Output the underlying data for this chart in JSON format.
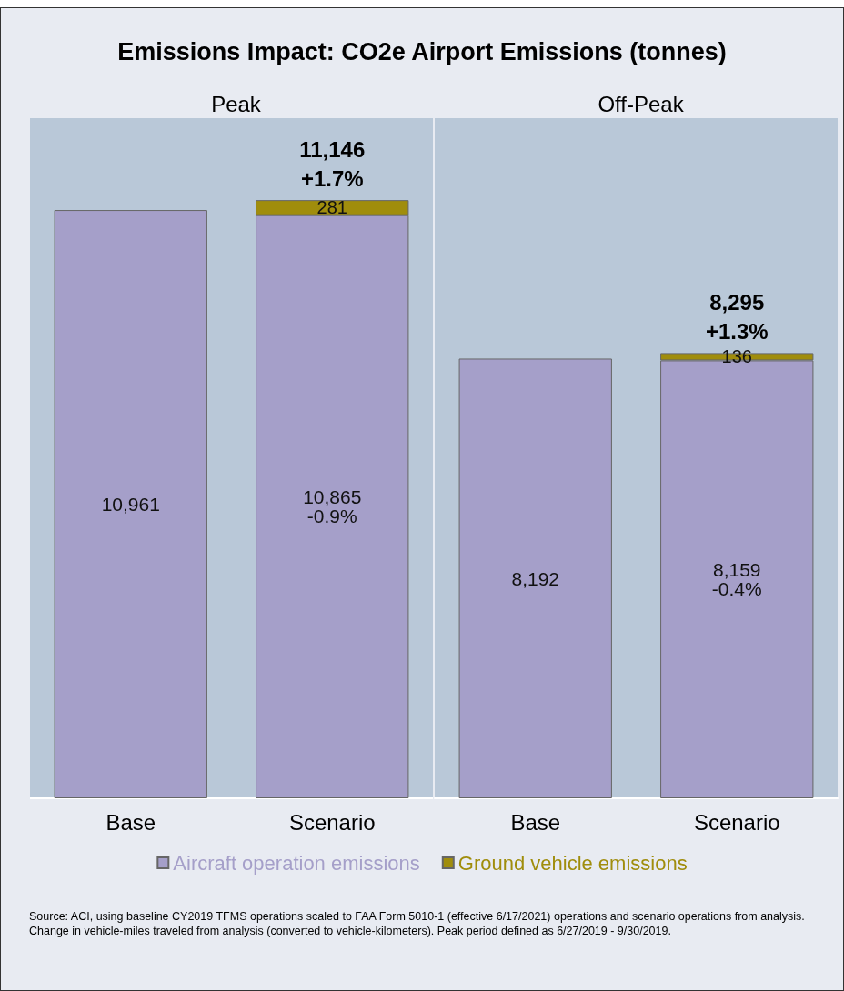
{
  "chart_data": [
    {
      "type": "bar",
      "title": "Emissions Impact: CO2e Airport Emissions (tonnes)",
      "subtitle": "Peak",
      "stacked": true,
      "legend": false,
      "categories": [
        "Base",
        "Scenario"
      ],
      "series": [
        {
          "color": "#a59fc9",
          "values": [
            10961,
            10865
          ],
          "value_labels": [
            "10,961",
            "10,865\n-0.9%"
          ]
        },
        {
          "color": "#a08d0c",
          "values": [
            null,
            281
          ],
          "value_labels": [
            null,
            "281"
          ]
        }
      ],
      "totals": [
        null,
        "11,146\n+1.7%"
      ]
    },
    {
      "type": "bar",
      "subtitle": "Off-Peak",
      "stacked": true,
      "legend": "bottom",
      "categories": [
        "Base",
        "Scenario"
      ],
      "series": [
        {
          "name": "Aircraft operation emissions",
          "color": "#a59fc9",
          "values": [
            8192,
            8159
          ],
          "value_labels": [
            "8,192",
            "8,159\n-0.4%"
          ]
        },
        {
          "name": "Ground vehicle emissions",
          "color": "#a08d0c",
          "values": [
            null,
            136
          ],
          "value_labels": [
            null,
            "136"
          ]
        }
      ],
      "totals": [
        null,
        "8,295\n+1.3%"
      ],
      "annotations": [
        "Source: ACI, using baseline CY2019 TFMS operations scaled to FAA Form 5010-1 (effective 6/17/2021) operations and scenario operations from analysis. Change in vehicle-miles traveled from analysis (converted to vehicle-kilometers). Peak period defined as 6/27/2019 - 9/30/2019."
      ]
    }
  ]
}
